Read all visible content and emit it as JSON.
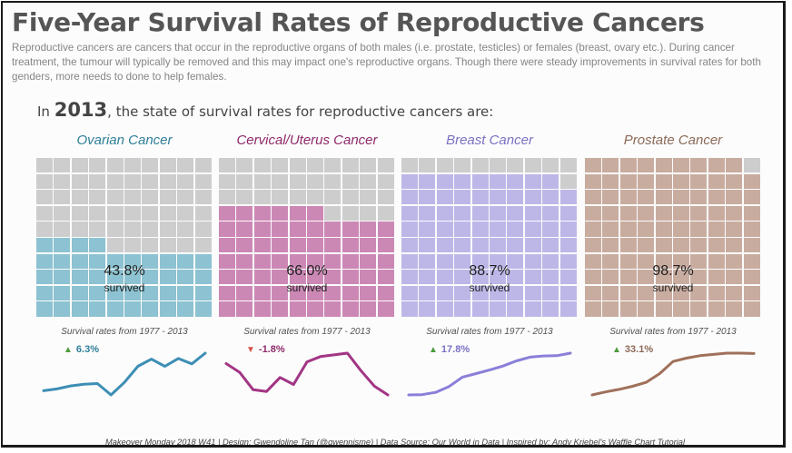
{
  "title": "Five-Year Survival Rates of Reproductive Cancers",
  "description": "Reproductive cancers are cancers that occur in the reproductive organs of both males (i.e. prostate, testicles) or females (breast, ovary etc.). During cancer treatment, the tumour will typically be removed and this may impact one's reproductive organs. Though there were steady improvements in survival rates for both genders, more needs to done to help females.",
  "headline": {
    "prefix": "In ",
    "year": "2013",
    "suffix": ", the state of survival rates for reproductive cancers are:"
  },
  "footer": "Makeover Monday 2018 W41 | Design: Gwendoline Tan (@gwennisme) | Data Source: Our World in Data | Inspired by: Andy Kriebel's Waffle Chart Tutorial",
  "colors": {
    "empty_cell": "#cdcdcd",
    "up_arrow": "#4a9c3b",
    "down_arrow": "#d9534f"
  },
  "chart_data": [
    {
      "type": "waffle",
      "title": "Ovarian Cancer",
      "value": 43.8,
      "value_label": "43.8%",
      "caption": "survived",
      "color": "#8cc2d1",
      "text_color": "#2f7f99",
      "line_color": "#3d8eb5",
      "sparkline": {
        "subtitle": "Survival rates from 1977 - 2013",
        "change_label": "6.3%",
        "direction": "up",
        "x": [
          1977,
          1980,
          1983,
          1986,
          1989,
          1992,
          1995,
          1998,
          2001,
          2004,
          2007,
          2010,
          2013
        ],
        "values": [
          37.5,
          37.8,
          38.3,
          38.6,
          38.7,
          36.8,
          38.9,
          41.6,
          42.8,
          41.6,
          42.9,
          42.0,
          43.8
        ]
      }
    },
    {
      "type": "waffle",
      "title": "Cervical/Uterus Cancer",
      "value": 66.0,
      "value_label": "66.0%",
      "caption": "survived",
      "color": "#cc88b5",
      "text_color": "#8e2a6b",
      "line_color": "#a23585",
      "sparkline": {
        "subtitle": "Survival rates from 1977 - 2013",
        "change_label": "-1.8%",
        "direction": "down",
        "x": [
          1977,
          1980,
          1983,
          1986,
          1989,
          1992,
          1995,
          1998,
          2001,
          2004,
          2007,
          2010,
          2013
        ],
        "values": [
          67.8,
          67.3,
          66.3,
          66.2,
          67.0,
          66.6,
          67.9,
          68.2,
          68.3,
          68.4,
          67.4,
          66.5,
          66.0
        ]
      }
    },
    {
      "type": "waffle",
      "title": "Breast Cancer",
      "value": 88.7,
      "value_label": "88.7%",
      "caption": "survived",
      "color": "#bdb7e8",
      "text_color": "#7a71c4",
      "line_color": "#8a7fd8",
      "sparkline": {
        "subtitle": "Survival rates from 1977 - 2013",
        "change_label": "17.8%",
        "direction": "up",
        "x": [
          1977,
          1980,
          1983,
          1986,
          1989,
          1992,
          1995,
          1998,
          2001,
          2004,
          2007,
          2010,
          2013
        ],
        "values": [
          70.9,
          71.0,
          72.0,
          74.5,
          78.5,
          80.0,
          81.5,
          83.2,
          85.4,
          87.0,
          87.5,
          87.6,
          88.7
        ]
      }
    },
    {
      "type": "waffle",
      "title": "Prostate Cancer",
      "value": 98.7,
      "value_label": "98.7%",
      "caption": "survived",
      "color": "#c9aca0",
      "text_color": "#8b6a58",
      "line_color": "#a0705a",
      "sparkline": {
        "subtitle": "Survival rates from 1977 - 2013",
        "change_label": "33.1%",
        "direction": "up",
        "x": [
          1977,
          1980,
          1983,
          1986,
          1989,
          1992,
          1995,
          1998,
          2001,
          2004,
          2007,
          2010,
          2013
        ],
        "values": [
          65.6,
          68.0,
          70.0,
          72.5,
          75.6,
          82.6,
          92.3,
          95.0,
          97.0,
          98.0,
          99.0,
          99.0,
          98.7
        ]
      }
    }
  ]
}
